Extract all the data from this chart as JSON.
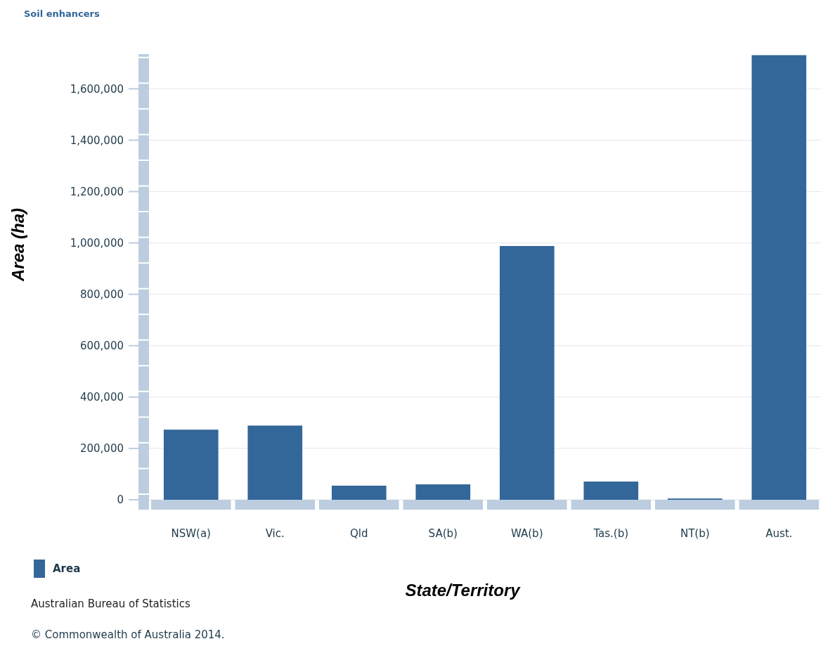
{
  "chart_data": {
    "type": "bar",
    "title": "Soil enhancers",
    "xlabel": "State/Territory",
    "ylabel": "Area (ha)",
    "categories": [
      "NSW(a)",
      "Vic.",
      "Qld",
      "SA(b)",
      "WA(b)",
      "Tas.(b)",
      "NT(b)",
      "Aust."
    ],
    "series": [
      {
        "name": "Area",
        "color": "#336699",
        "values": [
          273000,
          289000,
          55000,
          60000,
          988000,
          71000,
          5000,
          1731000
        ]
      }
    ],
    "ylim": [
      0,
      1735000
    ],
    "yticks": [
      0,
      {
        "value": 200000,
        "label": "200,000"
      },
      {
        "value": 400000,
        "label": "400,000"
      },
      {
        "value": 600000,
        "label": "600,000"
      },
      {
        "value": 800000,
        "label": "800,000"
      },
      {
        "value": 1000000,
        "label": "1,000,000"
      },
      {
        "value": 1200000,
        "label": "1,200,000"
      },
      {
        "value": 1400000,
        "label": "1,400,000"
      },
      {
        "value": 1600000,
        "label": "1,600,000"
      }
    ],
    "grid": "y",
    "legend": "bottom left",
    "annotations": [
      "Australian Bureau of Statistics",
      "© Commonwealth of Australia 2014."
    ]
  }
}
